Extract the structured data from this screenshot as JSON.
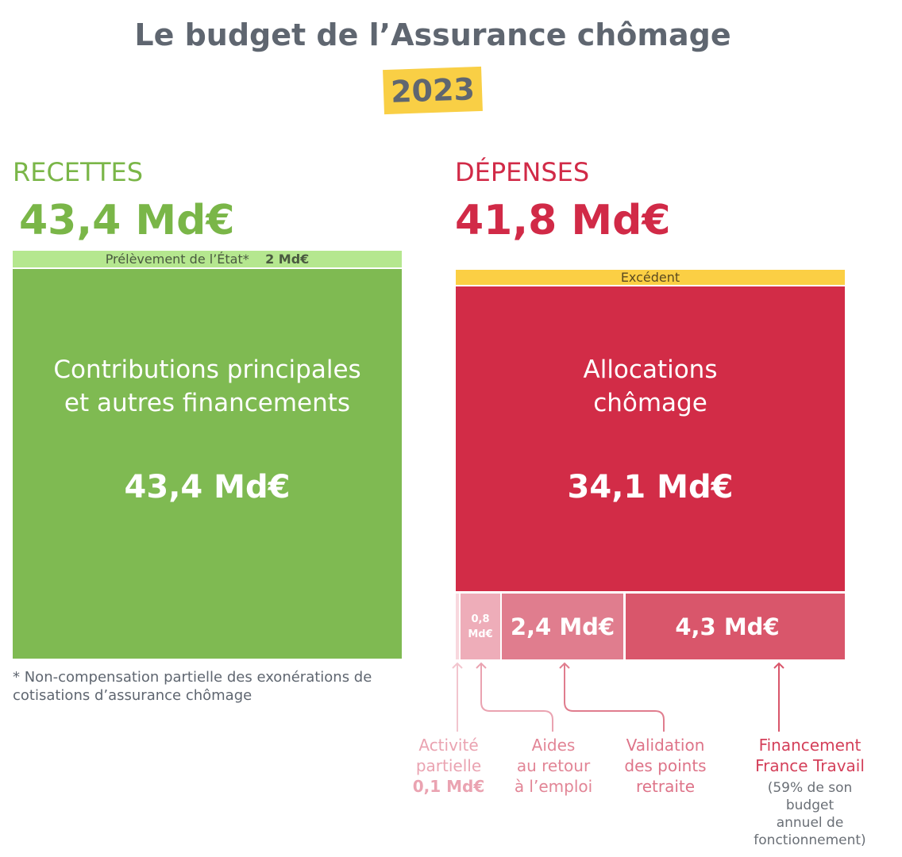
{
  "title": "Le budget de l’Assurance chômage",
  "year": "2023",
  "recettes": {
    "heading": "RECETTES",
    "total": "43,4 Md€",
    "prelevement": {
      "label": "Prélèvement de l’État*",
      "value": "2 Md€"
    },
    "main": {
      "label_line1": "Contributions principales",
      "label_line2": "et autres financements",
      "value": "43,4 Md€"
    },
    "footnote_line1": "* Non-compensation partielle des exonérations de",
    "footnote_line2": "cotisations d’assurance chômage"
  },
  "depenses": {
    "heading": "DÉPENSES",
    "total": "41,8 Md€",
    "excedent": "Excédent",
    "main": {
      "label_line1": "Allocations",
      "label_line2": "chômage",
      "value": "34,1 Md€"
    },
    "small": [
      {
        "value_line1": "0,8",
        "value_line2": "Md€"
      },
      {
        "value": "2,4 Md€"
      },
      {
        "value": "4,3 Md€"
      }
    ],
    "labels": {
      "activite": [
        "Activité",
        "partielle",
        "0,1 Md€"
      ],
      "aides": [
        "Aides",
        "au retour",
        "à l’emploi"
      ],
      "validation": [
        "Validation",
        "des points",
        "retraite"
      ],
      "france_travail": [
        "Financement",
        "France Travail"
      ],
      "france_travail_note": [
        "(59% de son",
        "budget",
        "annuel de",
        "fonctionnement)"
      ]
    }
  },
  "colors": {
    "green": "#7fba52",
    "light_green": "#b5e78f",
    "red": "#d22c47",
    "yellow": "#fbcf44",
    "pink1": "#f8d8de",
    "pink2": "#eeadb9",
    "pink3": "#e07d8e",
    "pink4": "#d9566b"
  }
}
